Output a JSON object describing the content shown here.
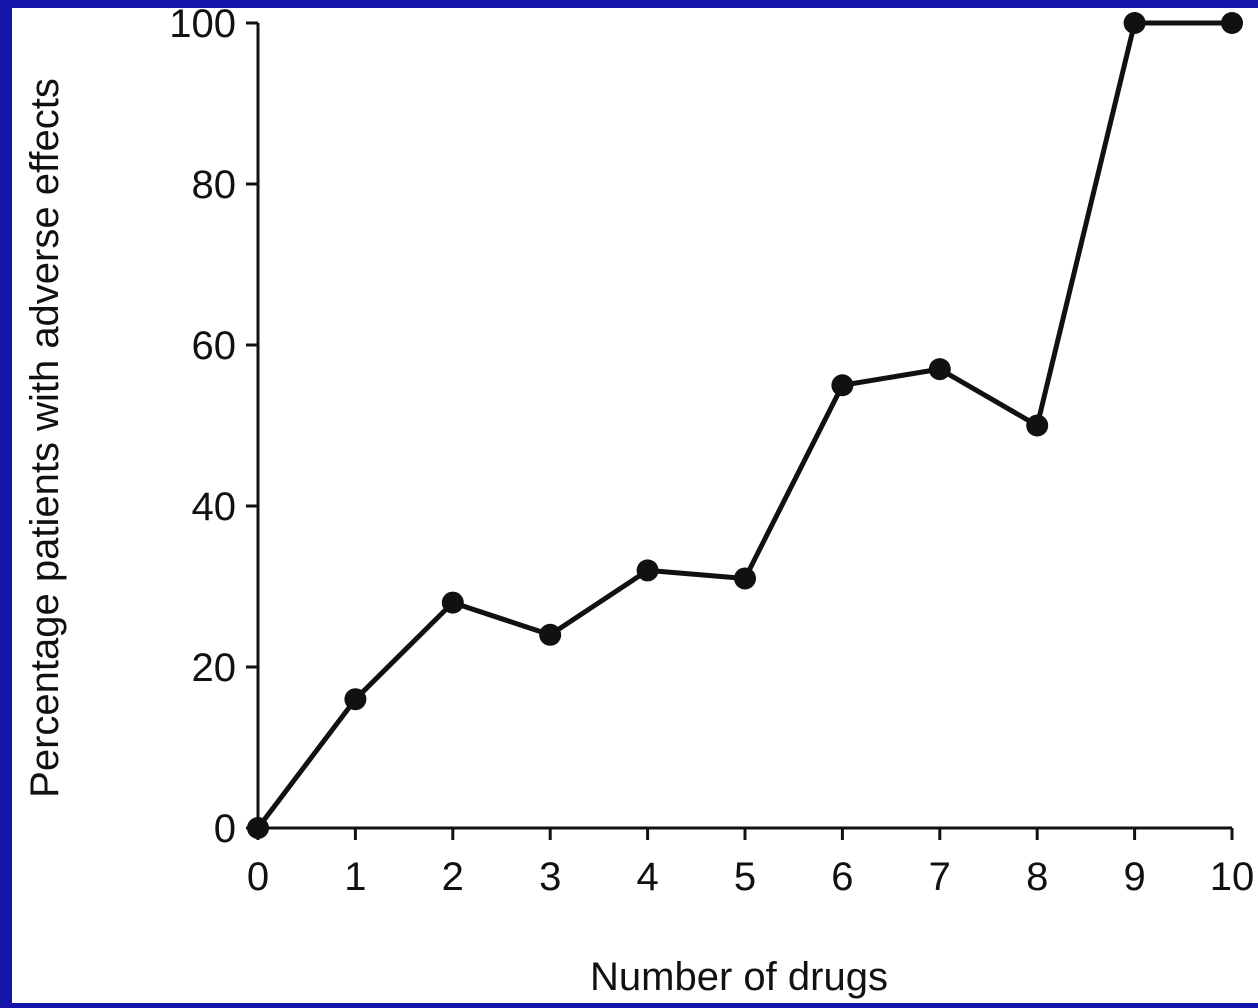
{
  "colors": {
    "border": "#1414a8",
    "background": "#ffffff",
    "ink": "#111111"
  },
  "chart_data": {
    "type": "line",
    "title": "",
    "xlabel": "Number of drugs",
    "ylabel": "Percentage patients with adverse effects",
    "xlim": [
      0,
      10
    ],
    "ylim": [
      0,
      100
    ],
    "x_ticks": [
      "0",
      "1",
      "2",
      "3",
      "4",
      "5",
      "6",
      "7",
      "8",
      "9",
      "10"
    ],
    "y_ticks": [
      "0",
      "20",
      "40",
      "60",
      "80",
      "100"
    ],
    "grid": false,
    "legend": "none",
    "series": [
      {
        "x": [
          0,
          1,
          2,
          3,
          4,
          5,
          6,
          7,
          8,
          9,
          10
        ],
        "values": [
          0,
          16,
          28,
          24,
          32,
          31,
          55,
          57,
          50,
          100,
          100
        ]
      }
    ]
  }
}
